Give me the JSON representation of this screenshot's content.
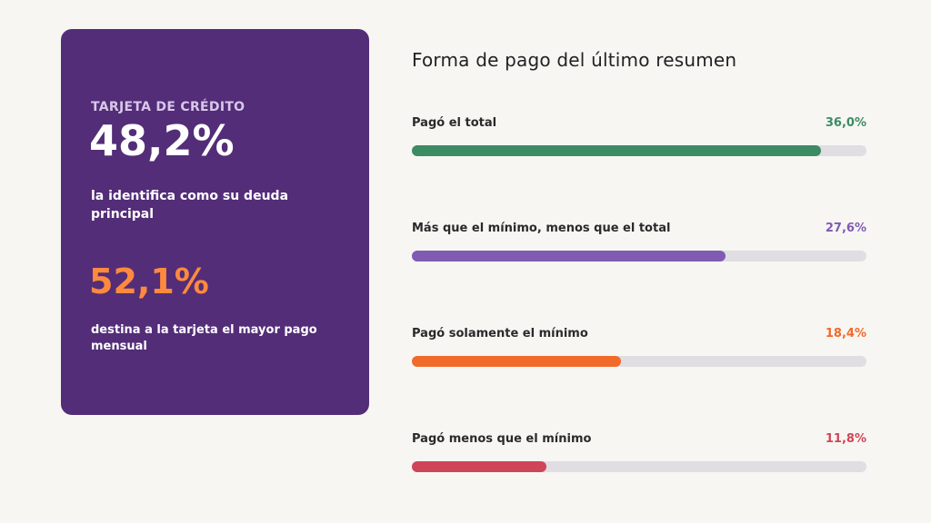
{
  "card": {
    "label": "TARJETA DE CRÉDITO",
    "stat1": "48,2%",
    "stat1_desc": "la identifica como su deuda principal",
    "stat2": "52,1%",
    "stat2_desc": "destina a la tarjeta el mayor pago mensual"
  },
  "chart_data": {
    "type": "bar",
    "title": "Forma de pago del último resumen",
    "categories": [
      "Pagó el total",
      "Más que el mínimo, menos que el total",
      "Pagó solamente el mínimo",
      "Pagó menos que el mínimo"
    ],
    "values": [
      36.0,
      27.6,
      18.4,
      11.8
    ],
    "value_labels": [
      "36,0%",
      "27,6%",
      "18,4%",
      "11,8%"
    ],
    "colors": [
      "#3d8b63",
      "#7f5bb3",
      "#f26a2a",
      "#d04458"
    ],
    "xlim": [
      0,
      40
    ],
    "orientation": "horizontal",
    "grid": false
  }
}
